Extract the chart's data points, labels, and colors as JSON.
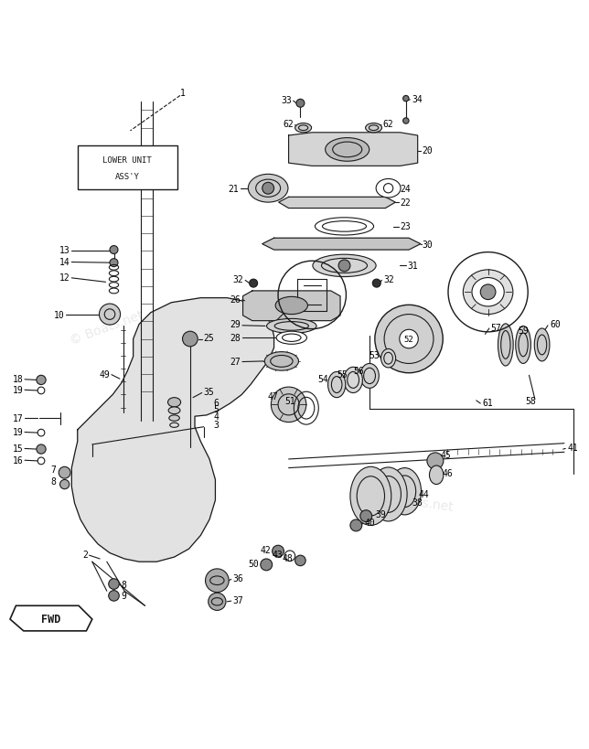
{
  "bg_color": "#ffffff",
  "line_color": "#1a1a1a",
  "label_box_text1": "LOWER UNIT",
  "label_box_text2": "ASS'Y",
  "fwd_label": "FWD",
  "watermark1": "© Boats.net",
  "watermark2": "Boats.net"
}
